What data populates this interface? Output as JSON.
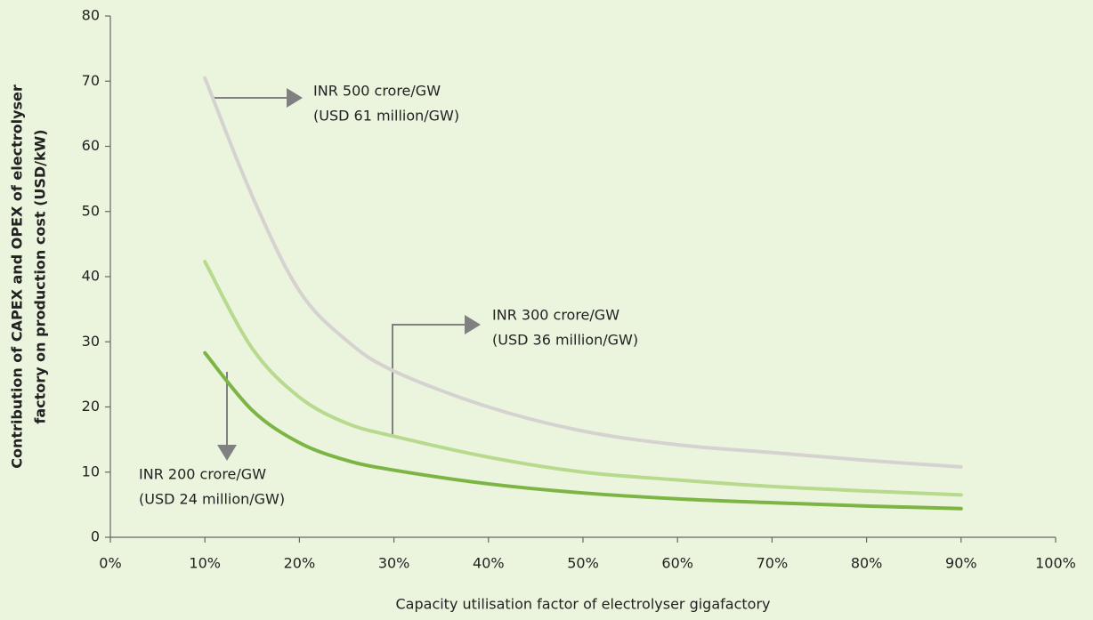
{
  "chart_data": {
    "type": "line",
    "xlabel": "Capacity utilisation factor of electrolyser gigafactory",
    "ylabel": [
      "Contribution of CAPEX and OPEX of electrolyser",
      "factory on production cost (USD/kW)"
    ],
    "x": [
      10,
      15,
      20,
      25,
      30,
      40,
      50,
      60,
      70,
      80,
      90
    ],
    "series": [
      {
        "color": "#d5d2d0",
        "values": [
          70.5,
          52.4,
          37.8,
          30.2,
          25.5,
          20,
          16.3,
          14.2,
          13,
          11.8,
          10.8
        ]
      },
      {
        "color": "#b7da8e",
        "values": [
          42.3,
          29,
          21.5,
          17.5,
          15.5,
          12.3,
          10,
          8.8,
          7.8,
          7.1,
          6.5
        ]
      },
      {
        "color": "#7db544",
        "values": [
          28.3,
          19.5,
          14.5,
          11.8,
          10.3,
          8.2,
          6.8,
          5.9,
          5.3,
          4.8,
          4.4
        ]
      }
    ],
    "annotations": [
      {
        "lines": [
          "INR 500 crore/GW",
          "(USD 61 million/GW)"
        ]
      },
      {
        "lines": [
          "INR 300 crore/GW",
          "(USD 36 million/GW)"
        ]
      },
      {
        "lines": [
          "INR 200 crore/GW",
          "(USD 24 million/GW)"
        ]
      }
    ],
    "xlim": [
      0,
      100
    ],
    "xticks": [
      {
        "value": 0,
        "label": "0%"
      },
      {
        "value": 10,
        "label": "10%"
      },
      {
        "value": 20,
        "label": "20%"
      },
      {
        "value": 30,
        "label": "30%"
      },
      {
        "value": 40,
        "label": "40%"
      },
      {
        "value": 50,
        "label": "50%"
      },
      {
        "value": 60,
        "label": "60%"
      },
      {
        "value": 70,
        "label": "70%"
      },
      {
        "value": 80,
        "label": "80%"
      },
      {
        "value": 90,
        "label": "90%"
      },
      {
        "value": 100,
        "label": "100%"
      }
    ],
    "ylim": [
      0,
      80
    ],
    "yticks": [
      0,
      10,
      20,
      30,
      40,
      50,
      60,
      70,
      80
    ],
    "grid": false
  }
}
